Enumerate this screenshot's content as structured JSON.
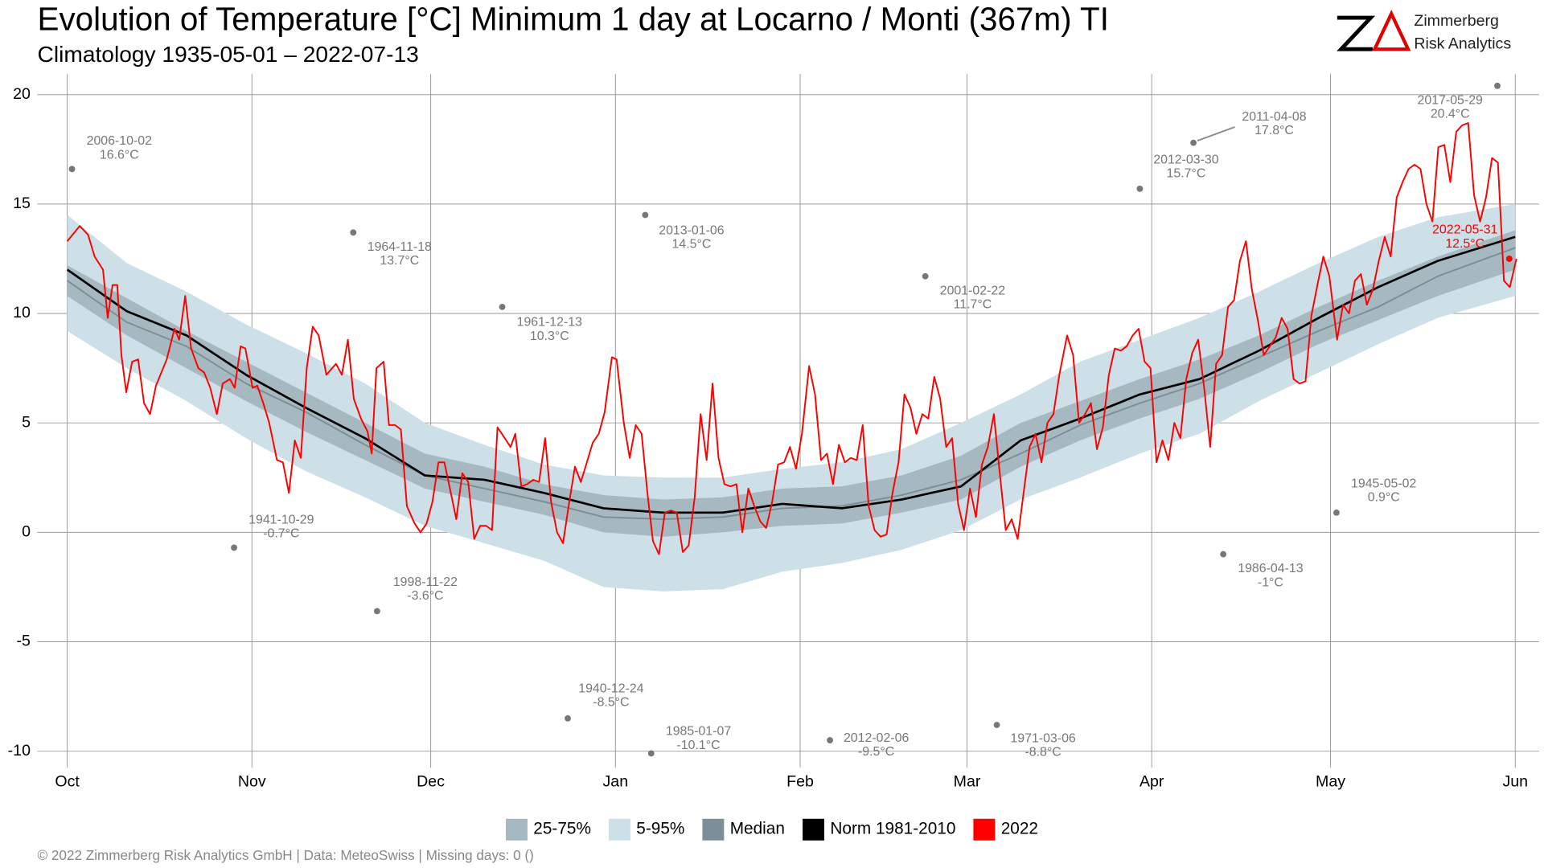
{
  "chart_data": {
    "type": "line",
    "title": "Evolution of Temperature [°C] Minimum 1 day at Locarno / Monti (367m) TI",
    "subtitle": "Climatology 1935-05-01 – 2022-07-13",
    "brand": [
      "Zimmerberg",
      "Risk Analytics"
    ],
    "footer": "©  2022 Zimmerberg Risk Analytics GmbH | Data: MeteoSwiss | Missing days: 0 ()",
    "xlim": [
      -5,
      247
    ],
    "ylim": [
      -10.75,
      20.95
    ],
    "xticks": [
      {
        "value": 0,
        "label": "Oct"
      },
      {
        "value": 31,
        "label": "Nov"
      },
      {
        "value": 61,
        "label": "Dec"
      },
      {
        "value": 92,
        "label": "Jan"
      },
      {
        "value": 123,
        "label": "Feb"
      },
      {
        "value": 151,
        "label": "Mar"
      },
      {
        "value": 182,
        "label": "Apr"
      },
      {
        "value": 212,
        "label": "May"
      },
      {
        "value": 243,
        "label": "Jun"
      }
    ],
    "yticks": [
      -10,
      -5,
      0,
      5,
      10,
      15,
      20
    ],
    "grid": true,
    "series": [
      {
        "name": "25-75%",
        "kind": "band",
        "color": "#a7b9c0",
        "x": [
          0,
          10,
          20,
          30,
          40,
          50,
          60,
          70,
          80,
          90,
          100,
          110,
          120,
          130,
          140,
          150,
          160,
          170,
          180,
          190,
          200,
          210,
          220,
          230,
          243
        ],
        "low": [
          10.8,
          9.0,
          7.5,
          6.0,
          4.6,
          3.3,
          2.0,
          1.4,
          0.8,
          0.0,
          -0.2,
          0.0,
          0.3,
          0.4,
          0.9,
          1.5,
          3.0,
          4.2,
          5.2,
          6.1,
          7.3,
          8.6,
          9.7,
          10.8,
          12.0
        ],
        "high": [
          12.2,
          10.7,
          9.2,
          7.8,
          6.4,
          5.0,
          3.6,
          3.0,
          2.2,
          1.7,
          1.5,
          1.6,
          2.0,
          2.1,
          2.6,
          3.5,
          5.0,
          6.0,
          7.0,
          7.9,
          9.0,
          10.3,
          11.5,
          12.6,
          13.8
        ]
      },
      {
        "name": "5-95%",
        "kind": "band",
        "color": "#cde0e7",
        "x": [
          0,
          10,
          20,
          30,
          40,
          50,
          60,
          70,
          80,
          90,
          100,
          110,
          120,
          130,
          140,
          150,
          160,
          170,
          180,
          190,
          200,
          210,
          220,
          230,
          243
        ],
        "low": [
          9.2,
          7.5,
          6.0,
          4.3,
          2.8,
          1.6,
          0.3,
          -0.5,
          -1.3,
          -2.5,
          -2.7,
          -2.6,
          -1.8,
          -1.4,
          -0.8,
          0.1,
          1.5,
          2.5,
          3.6,
          4.5,
          6.0,
          7.3,
          8.6,
          9.8,
          10.8
        ],
        "high": [
          14.5,
          12.3,
          11.0,
          9.5,
          8.2,
          6.8,
          5.0,
          4.0,
          3.1,
          2.6,
          2.5,
          2.5,
          2.9,
          3.2,
          3.8,
          5.0,
          6.3,
          7.8,
          8.8,
          9.8,
          11.0,
          12.3,
          13.5,
          14.4,
          15.0
        ]
      },
      {
        "name": "Median",
        "kind": "line",
        "color": "#7d8f96",
        "x": [
          0,
          10,
          20,
          30,
          40,
          50,
          60,
          70,
          80,
          90,
          100,
          110,
          120,
          130,
          140,
          150,
          160,
          170,
          180,
          190,
          200,
          210,
          220,
          230,
          243
        ],
        "values": [
          11.5,
          9.6,
          8.5,
          6.8,
          5.5,
          4.0,
          2.6,
          2.0,
          1.4,
          0.7,
          0.6,
          0.7,
          1.1,
          1.2,
          1.7,
          2.4,
          3.6,
          4.9,
          5.9,
          6.8,
          8.0,
          9.2,
          10.3,
          11.7,
          13.0
        ]
      },
      {
        "name": "Norm 1981-2010",
        "kind": "line",
        "color": "#000000",
        "x": [
          0,
          10,
          20,
          30,
          40,
          50,
          60,
          70,
          80,
          90,
          100,
          110,
          120,
          130,
          140,
          150,
          160,
          170,
          180,
          190,
          200,
          210,
          220,
          230,
          243
        ],
        "values": [
          12.0,
          10.1,
          9.0,
          7.2,
          5.7,
          4.3,
          2.6,
          2.4,
          1.8,
          1.1,
          0.9,
          0.9,
          1.3,
          1.1,
          1.5,
          2.1,
          4.2,
          5.2,
          6.3,
          7.0,
          8.3,
          9.8,
          11.2,
          12.4,
          13.5
        ]
      },
      {
        "name": "2022",
        "kind": "line",
        "color": "#ff0000",
        "x": [
          0,
          2.1,
          3.5,
          4.6,
          6,
          6.8,
          7.6,
          8.4,
          9.1,
          9.9,
          10.9,
          11.9,
          12.9,
          13.9,
          14.9,
          16.7,
          18,
          18.8,
          19.8,
          20.8,
          22,
          23,
          24,
          25.1,
          26.1,
          27.3,
          28.1,
          29.1,
          29.9,
          31.1,
          31.9,
          32.9,
          33.9,
          35.2,
          36.2,
          37.2,
          38.2,
          39.2,
          40.2,
          41.2,
          42.2,
          43.5,
          45.1,
          46.1,
          47.1,
          48.1,
          49.3,
          50.4,
          51.1,
          51.9,
          53.1,
          54,
          55,
          56,
          57,
          58.3,
          59.3,
          60.3,
          61.3,
          62.3,
          63.3,
          64.3,
          65.3,
          66.3,
          67.3,
          68.3,
          69.3,
          70.3,
          71.3,
          72.2,
          73.2,
          74.4,
          75.2,
          76.2,
          77.2,
          78.2,
          79.2,
          80.2,
          81.2,
          82.2,
          83.2,
          84.2,
          85.2,
          86.2,
          87.2,
          88.2,
          89.2,
          90.2,
          91.4,
          92.2,
          93.4,
          94.4,
          95.4,
          96.4,
          97.4,
          98.3,
          99.3,
          100.3,
          101.3,
          102.3,
          103.3,
          104.3,
          105.3,
          106.3,
          107.3,
          108.3,
          109.3,
          110.3,
          111.3,
          112.3,
          113.3,
          114.3,
          115.3,
          116.3,
          117.3,
          118.3,
          119.3,
          120.3,
          121.3,
          122.3,
          123.3,
          124.5,
          125.5,
          126.5,
          127.5,
          128.5,
          129.5,
          130.5,
          131.5,
          132.5,
          133.5,
          134.5,
          135.5,
          136.5,
          137.5,
          138.5,
          139.5,
          140.5,
          141.5,
          142.5,
          143.5,
          144.5,
          145.5,
          146.5,
          147.5,
          148.5,
          149.5,
          150.5,
          151.5,
          152.5,
          153.5,
          154.5,
          155.5,
          156.5,
          157.5,
          158.5,
          159.5,
          160.5,
          161.5,
          162.5,
          163.5,
          164.5,
          165.5,
          166.5,
          167.8,
          168.8,
          169.8,
          170.8,
          171.8,
          172.8,
          173.8,
          174.8,
          175.8,
          176.8,
          177.8,
          178.8,
          179.8,
          180.8,
          181.8,
          182.8,
          183.8,
          184.8,
          185.8,
          186.8,
          187.8,
          188.8,
          189.8,
          190.8,
          191.8,
          192.8,
          193.8,
          194.8,
          195.8,
          196.8,
          197.8,
          198.8,
          199.8,
          200.8,
          201.8,
          202.8,
          203.8,
          204.8,
          205.8,
          206.8,
          207.8,
          208.8,
          209.8,
          210.8,
          211.8,
          213.1,
          214.1,
          215.1,
          216.1,
          217.1,
          218.1,
          219.1,
          220.1,
          221.1,
          222.1,
          223.1,
          224.1,
          225.1,
          226.1,
          227.1,
          228.1,
          229.1,
          230.1,
          231.1,
          232.1,
          233.1,
          234.1,
          235.1,
          236.1,
          237.1,
          238.1,
          239.1,
          240.1,
          241.1,
          242.1,
          243.2
        ],
        "values": [
          13.3,
          14.0,
          13.6,
          12.6,
          12.0,
          9.8,
          11.3,
          11.3,
          8.1,
          6.4,
          7.8,
          7.9,
          5.9,
          5.4,
          6.7,
          7.9,
          9.3,
          8.8,
          10.8,
          8.4,
          7.5,
          7.3,
          6.6,
          5.4,
          6.8,
          7.0,
          6.6,
          8.5,
          8.4,
          6.6,
          6.7,
          5.9,
          5.0,
          3.3,
          3.2,
          1.8,
          4.2,
          3.4,
          7.5,
          9.4,
          9.0,
          7.2,
          7.7,
          7.2,
          8.8,
          6.1,
          5.2,
          4.6,
          3.6,
          7.5,
          7.8,
          4.9,
          4.9,
          4.7,
          1.2,
          0.4,
          0.0,
          0.4,
          1.4,
          3.2,
          3.2,
          1.9,
          0.6,
          2.7,
          2.3,
          -0.3,
          0.3,
          0.3,
          0.1,
          4.8,
          4.4,
          3.9,
          4.5,
          2.1,
          2.2,
          2.4,
          2.3,
          4.3,
          1.4,
          0.0,
          -0.5,
          1.3,
          3.0,
          2.3,
          3.2,
          4.1,
          4.5,
          5.5,
          8.0,
          7.9,
          5.0,
          3.4,
          4.9,
          4.5,
          1.7,
          -0.4,
          -1.0,
          0.9,
          1.0,
          0.9,
          -0.9,
          -0.6,
          1.6,
          5.4,
          3.3,
          6.8,
          3.4,
          2.2,
          2.1,
          2.2,
          0.0,
          2.0,
          1.2,
          0.5,
          0.2,
          1.4,
          3.1,
          3.2,
          3.9,
          2.9,
          4.5,
          7.6,
          6.3,
          3.3,
          3.6,
          2.2,
          4.0,
          3.2,
          3.4,
          3.3,
          4.9,
          1.2,
          0.1,
          -0.2,
          -0.1,
          1.8,
          3.2,
          6.3,
          5.7,
          4.5,
          5.4,
          5.2,
          7.1,
          6.1,
          3.9,
          4.3,
          1.3,
          0.1,
          2.0,
          0.7,
          3.1,
          3.9,
          5.4,
          2.7,
          0.1,
          0.6,
          -0.3,
          1.8,
          3.9,
          4.5,
          3.2,
          5.0,
          5.4,
          7.2,
          9.0,
          8.1,
          5.0,
          5.4,
          5.9,
          3.8,
          4.8,
          7.2,
          8.4,
          8.3,
          8.5,
          9.0,
          9.3,
          7.8,
          7.5,
          3.2,
          4.2,
          3.3,
          5.0,
          4.3,
          7.0,
          8.2,
          8.8,
          6.6,
          3.9,
          7.7,
          8.1,
          10.3,
          10.6,
          12.4,
          13.3,
          11.1,
          9.7,
          8.1,
          8.5,
          8.9,
          9.8,
          9.3,
          7.0,
          6.8,
          6.9,
          9.9,
          11.3,
          12.6,
          11.7,
          8.8,
          10.4,
          10.0,
          11.5,
          11.8,
          10.4,
          11.1,
          12.4,
          13.5,
          12.6,
          15.3,
          16.0,
          16.6,
          16.8,
          16.6,
          15.0,
          14.2,
          17.6,
          17.7,
          16.0,
          18.3,
          18.6,
          18.7,
          15.4,
          14.2,
          15.3,
          17.1,
          16.9,
          11.5,
          11.2,
          12.5
        ]
      }
    ],
    "extremes": {
      "x": [
        0.8,
        48,
        28,
        52,
        73,
        84,
        97,
        98,
        128,
        144,
        156,
        180,
        189,
        194,
        213,
        240,
        242
      ],
      "values": [
        16.6,
        13.7,
        -0.7,
        -3.6,
        10.3,
        -8.5,
        14.5,
        -10.1,
        -9.5,
        11.7,
        -8.8,
        15.7,
        17.8,
        -1,
        0.9,
        20.4,
        12.5
      ],
      "labels": [
        "2006-10-02",
        "1964-11-18",
        "1941-10-29",
        "1998-11-22",
        "1961-12-13",
        "1940-12-24",
        "2013-01-06",
        "1985-01-07",
        "2012-02-06",
        "2001-02-22",
        "1971-03-06",
        "2012-03-30",
        "2011-04-08",
        "1986-04-13",
        "1945-05-02",
        "2017-05-29",
        "2022-05-31"
      ],
      "value_labels": [
        "16.6°C",
        "13.7°C",
        "-0.7°C",
        "-3.6°C",
        "10.3°C",
        "-8.5°C",
        "14.5°C",
        "-10.1°C",
        "-9.5°C",
        "11.7°C",
        "-8.8°C",
        "15.7°C",
        "17.8°C",
        "-1°C",
        "0.9°C",
        "20.4°C",
        "12.5°C"
      ],
      "colors": [
        "#777777",
        "#777777",
        "#777777",
        "#777777",
        "#777777",
        "#777777",
        "#777777",
        "#777777",
        "#777777",
        "#777777",
        "#777777",
        "#777777",
        "#777777",
        "#777777",
        "#777777",
        "#777777",
        "#ff0000"
      ]
    }
  }
}
